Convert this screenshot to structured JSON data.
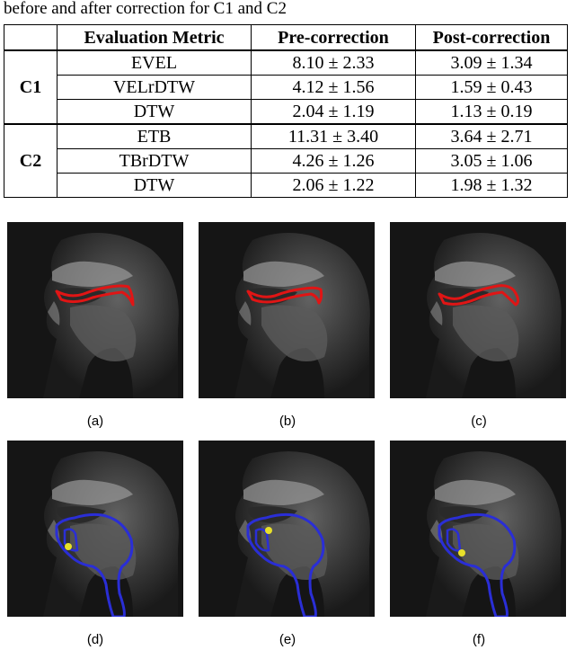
{
  "caption": "before and after correction for C1 and C2",
  "table": {
    "headers": [
      "",
      "Evaluation Metric",
      "Pre-correction",
      "Post-correction"
    ],
    "groups": [
      {
        "name": "C1",
        "rows": [
          {
            "metric": "EVEL",
            "pre": "8.10 ± 2.33",
            "post": "3.09 ± 1.34"
          },
          {
            "metric": "VELrDTW",
            "pre": "4.12 ± 1.56",
            "post": "1.59 ± 0.43"
          },
          {
            "metric": "DTW",
            "pre": "2.04 ± 1.19",
            "post": "1.13 ± 0.19"
          }
        ]
      },
      {
        "name": "C2",
        "rows": [
          {
            "metric": "ETB",
            "pre": "11.31 ± 3.40",
            "post": "3.64 ± 2.71"
          },
          {
            "metric": "TBrDTW",
            "pre": "4.26 ± 1.26",
            "post": "3.05 ± 1.06"
          },
          {
            "metric": "DTW",
            "pre": "2.06 ± 1.22",
            "post": "1.98 ± 1.32"
          }
        ]
      }
    ]
  },
  "figures": {
    "labels": [
      "(a)",
      "(b)",
      "(c)",
      "(d)",
      "(e)",
      "(f)"
    ],
    "contour_colors": {
      "velum": "#e01515",
      "tongue": "#2a2ed6",
      "point": "#e8e02a"
    }
  }
}
